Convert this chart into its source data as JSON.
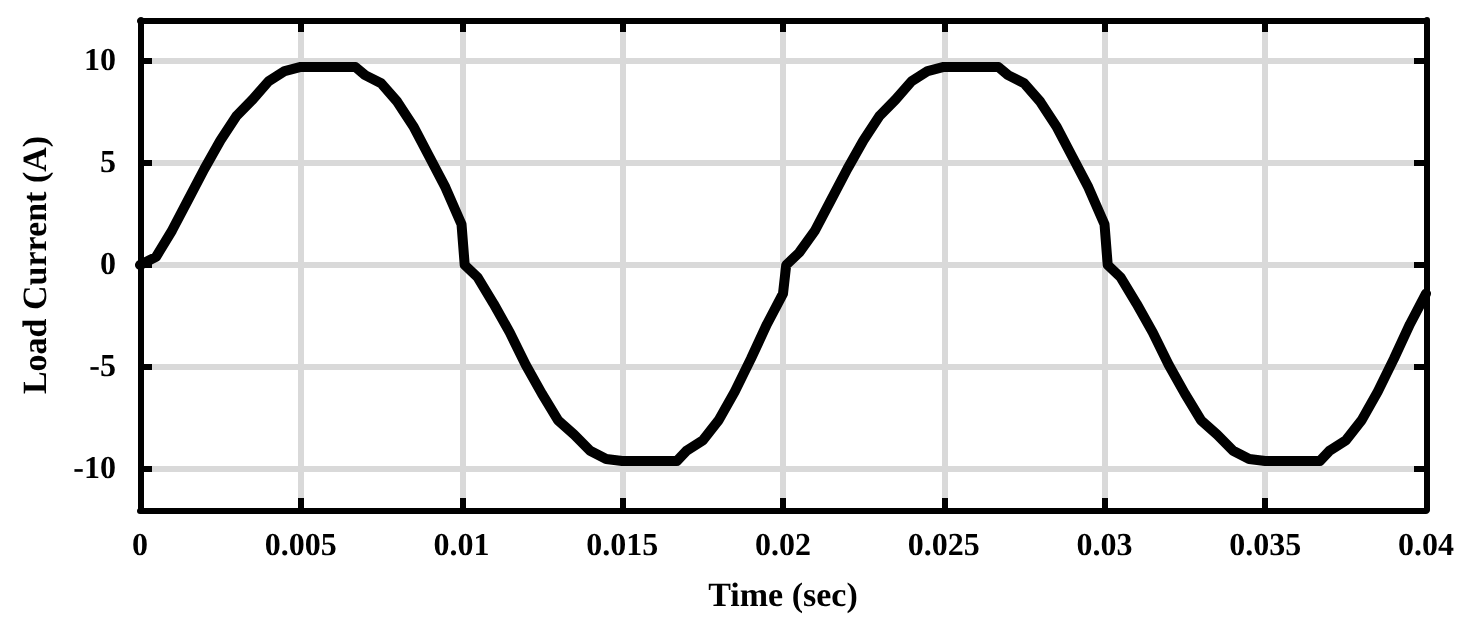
{
  "chart_data": {
    "type": "line",
    "xlabel": "Time (sec)",
    "ylabel": "Load Current (A)",
    "x": [
      0,
      0.0005,
      0.001,
      0.0015,
      0.002,
      0.0025,
      0.003,
      0.0035,
      0.004,
      0.0045,
      0.005,
      0.0067,
      0.007,
      0.0075,
      0.008,
      0.0085,
      0.009,
      0.0095,
      0.01,
      0.0101,
      0.0105,
      0.011,
      0.0115,
      0.012,
      0.0125,
      0.013,
      0.0135,
      0.014,
      0.0145,
      0.015,
      0.0167,
      0.017,
      0.0175,
      0.018,
      0.0185,
      0.019,
      0.0195,
      0.02,
      0.0201,
      0.0205,
      0.021,
      0.0215,
      0.022,
      0.0225,
      0.023,
      0.0235,
      0.024,
      0.0245,
      0.025,
      0.0267,
      0.027,
      0.0275,
      0.028,
      0.0285,
      0.029,
      0.0295,
      0.03,
      0.0301,
      0.0305,
      0.031,
      0.0315,
      0.032,
      0.0325,
      0.033,
      0.0335,
      0.034,
      0.0345,
      0.035,
      0.0367,
      0.037,
      0.0375,
      0.038,
      0.0385,
      0.039,
      0.0395,
      0.04
    ],
    "series": [
      {
        "color": "#000000",
        "values": [
          0,
          0.4,
          1.7,
          3.2,
          4.7,
          6.1,
          7.3,
          8.1,
          9.0,
          9.5,
          9.7,
          9.7,
          9.3,
          8.9,
          8.0,
          6.8,
          5.3,
          3.8,
          2.0,
          0,
          -0.6,
          -1.9,
          -3.3,
          -4.9,
          -6.3,
          -7.6,
          -8.3,
          -9.1,
          -9.5,
          -9.6,
          -9.6,
          -9.1,
          -8.6,
          -7.6,
          -6.2,
          -4.6,
          -2.9,
          -1.4,
          0,
          0.6,
          1.7,
          3.2,
          4.7,
          6.1,
          7.3,
          8.1,
          9.0,
          9.5,
          9.7,
          9.7,
          9.3,
          8.9,
          8.0,
          6.8,
          5.3,
          3.8,
          2.0,
          0,
          -0.6,
          -1.9,
          -3.3,
          -4.9,
          -6.3,
          -7.6,
          -8.3,
          -9.1,
          -9.5,
          -9.6,
          -9.6,
          -9.1,
          -8.6,
          -7.6,
          -6.2,
          -4.6,
          -2.9,
          -1.4
        ]
      }
    ],
    "xlim": [
      0,
      0.04
    ],
    "xticks": [
      0,
      0.005,
      0.01,
      0.015,
      0.02,
      0.025,
      0.03,
      0.035,
      0.04
    ],
    "ylim": [
      -12,
      12
    ],
    "yticks": [
      -10,
      -5,
      0,
      5,
      10
    ],
    "grid": true,
    "marker": "none",
    "line_style": "solid"
  }
}
